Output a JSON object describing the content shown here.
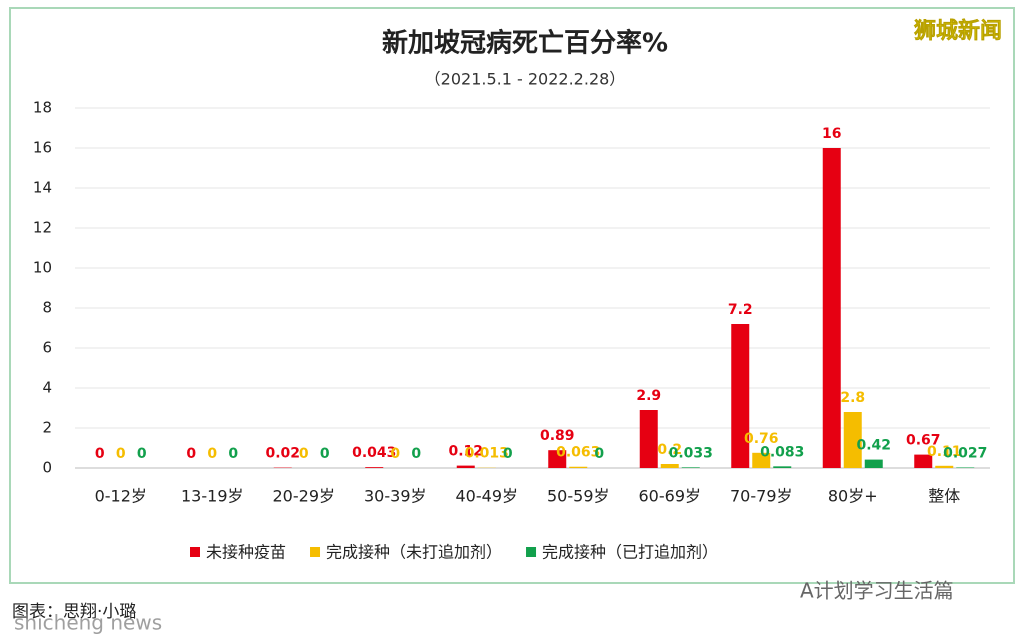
{
  "chart_data": {
    "type": "bar",
    "title": "新加坡冠病死亡百分率%",
    "subtitle": "（2021.5.1 - 2022.2.28）",
    "categories": [
      "0-12岁",
      "13-19岁",
      "20-29岁",
      "30-39岁",
      "40-49岁",
      "50-59岁",
      "60-69岁",
      "70-79岁",
      "80岁+",
      "整体"
    ],
    "series": [
      {
        "name": "未接种疫苗",
        "color": "#e60012",
        "values": [
          0,
          0,
          0.02,
          0.043,
          0.12,
          0.89,
          2.9,
          7.2,
          16,
          0.67
        ]
      },
      {
        "name": "完成接种（未打追加剂）",
        "color": "#f5bd00",
        "values": [
          0,
          0,
          0,
          0,
          0.013,
          0.063,
          0.2,
          0.76,
          2.8,
          0.11
        ]
      },
      {
        "name": "完成接种（已打追加剂）",
        "color": "#12a04c",
        "values": [
          0,
          0,
          0,
          0,
          0,
          0,
          0.033,
          0.083,
          0.42,
          0.027
        ]
      }
    ],
    "ylim": [
      0,
      18
    ],
    "yticks": [
      0,
      2,
      4,
      6,
      8,
      10,
      12,
      14,
      16,
      18
    ],
    "grid": true,
    "annotations": [
      "狮城新闻",
      "图表：思翔·小璐",
      "A计划学习生活篇",
      "shicheng news"
    ]
  }
}
